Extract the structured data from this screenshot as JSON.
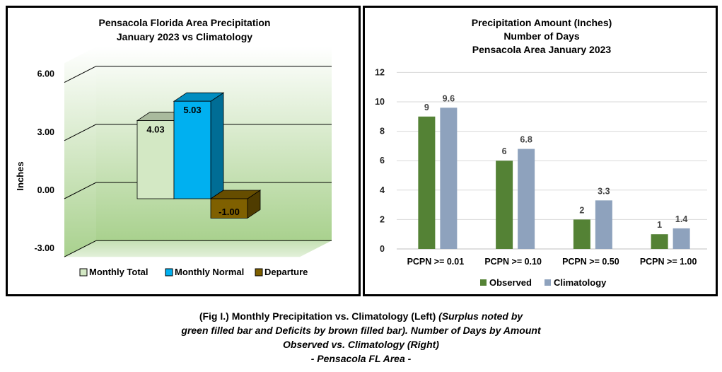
{
  "left_chart": {
    "title_lines": [
      "Pensacola Florida Area Precipitation",
      "January 2023 vs Climatology"
    ],
    "ylabel": "Inches",
    "yticks": [
      "6.00",
      "3.00",
      "0.00",
      "-3.00"
    ],
    "colors": {
      "total": "#d3e8c4",
      "normal": "#00b0f0",
      "departure": "#7f6000"
    }
  },
  "right_chart": {
    "title_lines": [
      "Precipitation Amount (Inches)",
      "Number of Days",
      "Pensacola Area January 2023"
    ],
    "yticks": [
      "12",
      "10",
      "8",
      "6",
      "4",
      "2",
      "0"
    ],
    "colors": {
      "observed": "#548235",
      "climatology": "#8ea2bd"
    }
  },
  "chart_data": [
    {
      "type": "bar",
      "title": "Pensacola Florida Area Precipitation January 2023 vs Climatology",
      "ylabel": "Inches",
      "ylim": [
        -3,
        7
      ],
      "grid": true,
      "legend": "bottom",
      "categories": [
        "Monthly Total",
        "Monthly Normal",
        "Departure"
      ],
      "values": [
        4.03,
        5.03,
        -1.0
      ],
      "data_labels": [
        "4.03",
        "5.03",
        "-1.00"
      ]
    },
    {
      "type": "bar",
      "title": "Precipitation Amount (Inches) Number of Days Pensacola Area January 2023",
      "ylim": [
        0,
        12
      ],
      "grid": true,
      "legend": "bottom",
      "categories": [
        "PCPN >= 0.01",
        "PCPN >= 0.10",
        "PCPN >= 0.50",
        "PCPN >= 1.00"
      ],
      "series": [
        {
          "name": "Observed",
          "values": [
            9,
            6,
            2,
            1
          ],
          "labels": [
            "9",
            "6",
            "2",
            "1"
          ]
        },
        {
          "name": "Climatology",
          "values": [
            9.6,
            6.8,
            3.3,
            1.4
          ],
          "labels": [
            "9.6",
            "6.8",
            "3.3",
            "1.4"
          ]
        }
      ]
    }
  ],
  "caption": {
    "part1": "(Fig I.) Monthly Precipitation vs. Climatology (Left) ",
    "part2_italic": "(Surplus noted by",
    "line2": "green filled bar and Deficits by brown filled bar). Number of Days by Amount",
    "line3": "Observed vs. Climatology (Right)",
    "line4": "- Pensacola FL Area -"
  }
}
